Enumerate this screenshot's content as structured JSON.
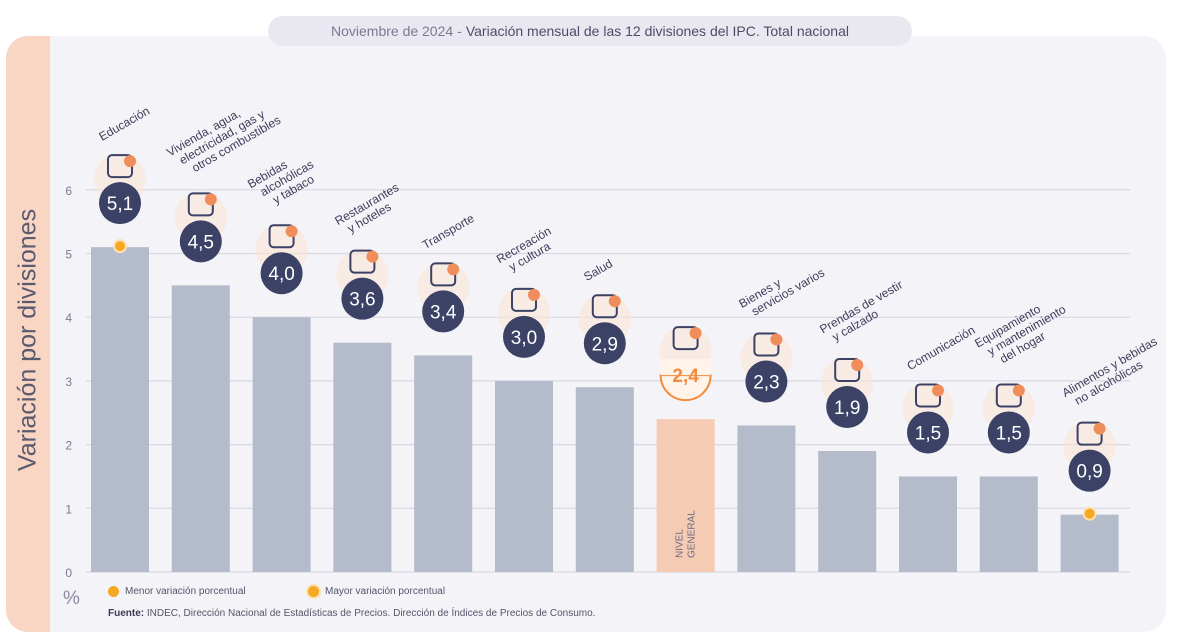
{
  "title": {
    "date": "Noviembre de 2024",
    "separator": "-",
    "text": "Variación mensual de las 12 divisiones del IPC. Total nacional"
  },
  "legend": {
    "min_label": "Menor variación porcentual",
    "max_label": "Mayor variación porcentual"
  },
  "source": {
    "prefix": "Fuente:",
    "text": "INDEC, Dirección Nacional de Estadísticas de Precios. Dirección de Índices de Precios de Consumo."
  },
  "chart_data": {
    "type": "bar",
    "ylabel": "Variación por divisiones",
    "unit": "%",
    "ylim": [
      0,
      6
    ],
    "yticks": [
      0,
      1,
      2,
      3,
      4,
      5,
      6
    ],
    "grid": true,
    "categories": [
      "Educación",
      "Vivienda, agua, electricidad, gas y otros combustibles",
      "Bebidas alcohólicas y tabaco",
      "Restaurantes y hoteles",
      "Transporte",
      "Recreación y cultura",
      "Salud",
      "NIVEL GENERAL",
      "Bienes y servicios varios",
      "Prendas de vestir y calzado",
      "Comunicación",
      "Equipamiento y mantenimiento del hogar",
      "Alimentos y bebidas no alcohólicas"
    ],
    "category_lines": [
      [
        "Educación"
      ],
      [
        "Vivienda, agua,",
        "electricidad, gas y",
        "otros combustibles"
      ],
      [
        "Bebidas",
        "alcohólicas",
        "y tabaco"
      ],
      [
        "Restaurantes",
        "y hoteles"
      ],
      [
        "Transporte"
      ],
      [
        "Recreación",
        "y cultura"
      ],
      [
        "Salud"
      ],
      [
        "NIVEL",
        "GENERAL"
      ],
      [
        "Bienes y",
        "servicios varios"
      ],
      [
        "Prendas de vestir",
        "y calzado"
      ],
      [
        "Comunicación"
      ],
      [
        "Equipamiento",
        "y mantenimiento",
        "del hogar"
      ],
      [
        "Alimentos y bebidas",
        "no alcohólicas"
      ]
    ],
    "values": [
      5.1,
      4.5,
      4.0,
      3.6,
      3.4,
      3.0,
      2.9,
      2.4,
      2.3,
      1.9,
      1.5,
      1.5,
      0.9
    ],
    "value_labels": [
      "5,1",
      "4,5",
      "4,0",
      "3,6",
      "3,4",
      "3,0",
      "2,9",
      "2,4",
      "2,3",
      "1,9",
      "1,5",
      "1,5",
      "0,9"
    ],
    "icons": [
      "notebook-icon",
      "lightbulb-icon",
      "wine-bottle-icon",
      "plate-cutlery-icon",
      "bus-card-icon",
      "umbrella-sun-icon",
      "first-aid-icon",
      "shopping-basket-icon",
      "comb-scissors-icon",
      "tshirt-icon",
      "smartphone-icon",
      "washing-machine-icon",
      "roast-chicken-icon"
    ],
    "highlight_index": 7,
    "max_index": 0,
    "min_index": 12,
    "colors": {
      "bar": "#b4bccb",
      "highlight_bar": "#f6cbb4",
      "badge": "#3b4266",
      "badge_text": "#ffffff",
      "highlight_text": "#f28b3c",
      "marker": "#f7a823",
      "grid": "#d8d8e2",
      "tick": "#7a7a90",
      "icon_stroke": "#3b4266",
      "icon_fill": "#f08e5b",
      "icon_bg": "#fbe3d3"
    }
  }
}
